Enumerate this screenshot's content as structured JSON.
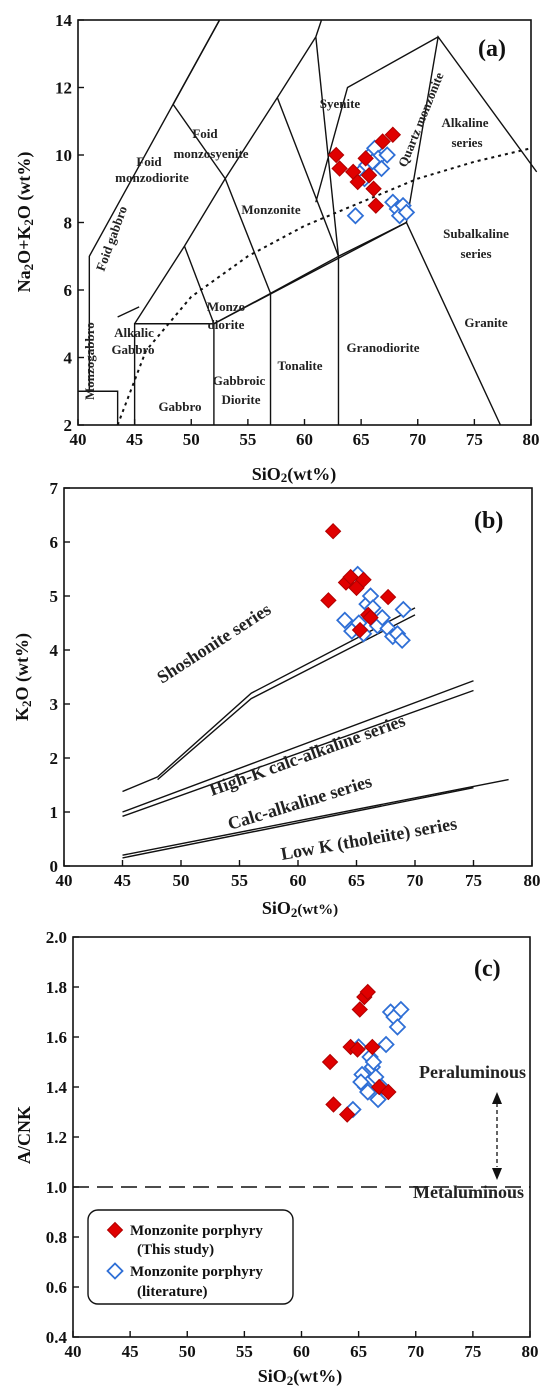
{
  "colors": {
    "this_study": "#e00000",
    "literature": "#2f6fd6",
    "line": "#111111"
  },
  "chart_data": [
    {
      "id": "a",
      "type": "scatter",
      "panel_label": "(a)",
      "xlabel": "SiO₂(wt%)",
      "ylabel": "Na₂O+K₂O (wt%)",
      "xlim": [
        40,
        80
      ],
      "ylim": [
        2,
        14
      ],
      "xticks": [
        "40",
        "45",
        "50",
        "55",
        "60",
        "65",
        "70",
        "75",
        "80"
      ],
      "yticks": [
        "2",
        "4",
        "6",
        "8",
        "10",
        "12",
        "14"
      ],
      "fields": [
        "Foid monzosyenite",
        "Syenite",
        "Quartz monzonite",
        "Alkaline series",
        "Foid monzodiorite",
        "Foid gabbro",
        "Monzonite",
        "Subalkaline series",
        "Monzo diorite",
        "Monzogabbro",
        "Alkalic Gabbro",
        "Gabbro",
        "Gabbroic Diorite",
        "Tonalite",
        "Granodiorite",
        "Granite"
      ],
      "boundaries": [
        [
          [
            41,
            3
          ],
          [
            41,
            7
          ],
          [
            52.5,
            14
          ]
        ],
        [
          [
            45,
            2
          ],
          [
            45,
            5
          ],
          [
            52,
            5
          ],
          [
            52,
            2
          ]
        ],
        [
          [
            52,
            5
          ],
          [
            57,
            5.9
          ],
          [
            57,
            2
          ]
        ],
        [
          [
            57,
            5.9
          ],
          [
            63,
            7
          ],
          [
            63,
            2
          ]
        ],
        [
          [
            63,
            7
          ],
          [
            69,
            8
          ],
          [
            69,
            8
          ],
          [
            77.3,
            2
          ]
        ],
        [
          [
            45,
            5
          ],
          [
            49.4,
            7.3
          ],
          [
            53,
            9.3
          ],
          [
            57.6,
            11.7
          ],
          [
            61,
            13.5
          ]
        ],
        [
          [
            49.4,
            7.3
          ],
          [
            52,
            5
          ]
        ],
        [
          [
            53,
            9.3
          ],
          [
            57,
            5.9
          ]
        ],
        [
          [
            57.6,
            11.7
          ],
          [
            63,
            7
          ]
        ],
        [
          [
            48.4,
            11.5
          ],
          [
            52.5,
            14
          ]
        ],
        [
          [
            48.4,
            11.5
          ],
          [
            53,
            9.3
          ]
        ],
        [
          [
            61,
            13.5
          ],
          [
            61.5,
            14
          ]
        ],
        [
          [
            63,
            7
          ],
          [
            61,
            13.5
          ]
        ],
        [
          [
            61,
            8.6
          ],
          [
            63.8,
            12.0
          ],
          [
            71.8,
            13.5
          ]
        ],
        [
          [
            69,
            8
          ],
          [
            71.8,
            13.5
          ],
          [
            80.5,
            9.5
          ]
        ],
        [
          [
            52,
            5
          ],
          [
            69,
            8
          ]
        ],
        [
          [
            40,
            3
          ],
          [
            43.5,
            3
          ],
          [
            43.5,
            2
          ]
        ],
        [
          [
            43.5,
            5.2
          ],
          [
            45.4,
            5.5
          ]
        ]
      ],
      "divider": [
        [
          43.5,
          2
        ],
        [
          46,
          4.2
        ],
        [
          50,
          5.8
        ],
        [
          55,
          7.0
        ],
        [
          60,
          7.9
        ],
        [
          65,
          8.6
        ],
        [
          70,
          9.3
        ],
        [
          75,
          9.8
        ],
        [
          80,
          10.2
        ]
      ],
      "series": [
        {
          "name": "Monzonite porphyry (This study)",
          "marker": "filled-diamond",
          "x": [
            62.8,
            63.1,
            64.3,
            64.7,
            65.4,
            65.7,
            66.1,
            66.3,
            66.9,
            67.8
          ],
          "y": [
            10.0,
            9.6,
            9.5,
            9.2,
            9.9,
            9.4,
            9.0,
            8.5,
            10.4,
            10.6
          ]
        },
        {
          "name": "Monzonite porphyry (literature)",
          "marker": "open-diamond",
          "x": [
            64.5,
            65.0,
            65.5,
            65.8,
            66.2,
            66.5,
            66.8,
            67.3,
            67.8,
            68.2,
            68.4,
            68.7,
            69.0,
            66.0,
            65.3
          ],
          "y": [
            8.2,
            9.5,
            9.7,
            10.0,
            10.2,
            9.9,
            9.6,
            10.0,
            8.6,
            8.4,
            8.2,
            8.5,
            8.3,
            9.8,
            9.3
          ]
        }
      ]
    },
    {
      "id": "b",
      "type": "scatter",
      "panel_label": "(b)",
      "xlabel": "SiO₂(wt%)",
      "ylabel": "K₂O (wt%)",
      "xlim": [
        40,
        80
      ],
      "ylim": [
        0,
        7
      ],
      "xticks": [
        "40",
        "45",
        "50",
        "55",
        "60",
        "65",
        "70",
        "75",
        "80"
      ],
      "yticks": [
        "0",
        "1",
        "2",
        "3",
        "4",
        "5",
        "6",
        "7"
      ],
      "fields": [
        "Shoshonite series",
        "High-K calc-alkaline series",
        "Calc-alkaline series",
        "Low K (tholeiite) series"
      ],
      "boundaries": [
        [
          [
            45,
            1.38
          ],
          [
            48,
            1.65
          ],
          [
            56,
            3.2
          ],
          [
            70,
            4.78
          ]
        ],
        [
          [
            48,
            1.6
          ],
          [
            56,
            3.1
          ],
          [
            70,
            4.65
          ]
        ],
        [
          [
            45,
            1.0
          ],
          [
            75,
            3.43
          ]
        ],
        [
          [
            45,
            0.92
          ],
          [
            75,
            3.25
          ]
        ],
        [
          [
            45,
            0.2
          ],
          [
            78,
            1.6
          ]
        ],
        [
          [
            45,
            0.15
          ],
          [
            75,
            1.45
          ]
        ]
      ],
      "series": [
        {
          "name": "Monzonite porphyry (This study)",
          "marker": "filled-diamond",
          "x": [
            62.6,
            63.0,
            64.1,
            64.5,
            65.0,
            65.6,
            66.0,
            65.3,
            66.2,
            67.7
          ],
          "y": [
            4.92,
            6.2,
            5.25,
            5.35,
            5.15,
            5.3,
            4.65,
            4.37,
            4.6,
            4.98
          ]
        },
        {
          "name": "Monzonite porphyry (literature)",
          "marker": "open-diamond",
          "x": [
            64.0,
            64.6,
            65.1,
            65.6,
            65.9,
            66.2,
            66.4,
            66.8,
            67.2,
            67.7,
            68.1,
            68.5,
            68.9,
            69.0,
            65.2
          ],
          "y": [
            4.55,
            4.35,
            5.4,
            4.3,
            4.85,
            5.0,
            4.78,
            4.45,
            4.6,
            4.4,
            4.25,
            4.3,
            4.18,
            4.75,
            4.5
          ]
        }
      ]
    },
    {
      "id": "c",
      "type": "scatter",
      "panel_label": "(c)",
      "xlabel": "SiO₂(wt%)",
      "ylabel": "A/CNK",
      "xlim": [
        40,
        80
      ],
      "ylim": [
        0.4,
        2.0
      ],
      "xticks": [
        "40",
        "45",
        "50",
        "55",
        "60",
        "65",
        "70",
        "75",
        "80"
      ],
      "yticks": [
        "0.4",
        "0.6",
        "0.8",
        "1.0",
        "1.2",
        "1.4",
        "1.6",
        "1.8",
        "2.0"
      ],
      "reference_line": 1.0,
      "fields": [
        "Peraluminous",
        "Metaluminous"
      ],
      "legend": {
        "entries": [
          {
            "line1": "Monzonite porphyry",
            "line2": "(This study)"
          },
          {
            "line1": "Monzonite porphyry",
            "line2": "(literature)"
          }
        ]
      },
      "series": [
        {
          "name": "Monzonite porphyry (This study)",
          "marker": "filled-diamond",
          "x": [
            62.5,
            62.8,
            64.0,
            64.3,
            65.1,
            65.5,
            65.8,
            66.2,
            66.8,
            67.6,
            64.9
          ],
          "y": [
            1.5,
            1.33,
            1.29,
            1.56,
            1.71,
            1.76,
            1.78,
            1.56,
            1.4,
            1.38,
            1.55
          ]
        },
        {
          "name": "Monzonite porphyry (literature)",
          "marker": "open-diamond",
          "x": [
            64.5,
            65.0,
            65.3,
            65.6,
            65.8,
            66.0,
            66.2,
            66.5,
            66.7,
            67.0,
            67.4,
            67.8,
            68.1,
            68.4,
            68.7,
            65.2,
            66.3
          ],
          "y": [
            1.31,
            1.56,
            1.45,
            1.4,
            1.38,
            1.52,
            1.48,
            1.44,
            1.35,
            1.4,
            1.57,
            1.7,
            1.68,
            1.64,
            1.71,
            1.42,
            1.5
          ]
        }
      ]
    }
  ]
}
